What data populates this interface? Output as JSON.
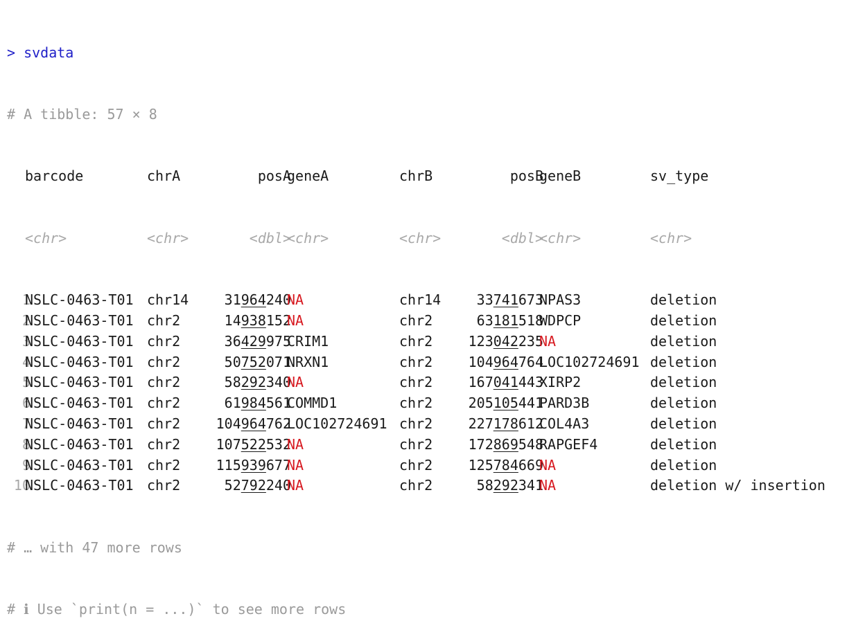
{
  "console": {
    "prompt_symbol": ">",
    "command": "svdata",
    "tibble_header": "# A tibble: 57 × 8",
    "footer_more": "# … with 47 more rows",
    "footer_hint": "# ℹ Use `print(n = ...)` to see more rows"
  },
  "table": {
    "columns": [
      {
        "name": "barcode",
        "type": "<chr>"
      },
      {
        "name": "chrA",
        "type": "<chr>"
      },
      {
        "name": "posA",
        "type": "<dbl>"
      },
      {
        "name": "geneA",
        "type": "<chr>"
      },
      {
        "name": "chrB",
        "type": "<chr>"
      },
      {
        "name": "posB",
        "type": "<dbl>"
      },
      {
        "name": "geneB",
        "type": "<chr>"
      },
      {
        "name": "sv_type",
        "type": "<chr>"
      }
    ],
    "rows": [
      {
        "n": "1",
        "barcode": "NSLC-0463-T01",
        "chrA": "chr14",
        "posA": "31964240",
        "geneA": "NA",
        "chrB": "chr14",
        "posB": "33741673",
        "geneB": "NPAS3",
        "sv_type": "deletion"
      },
      {
        "n": "2",
        "barcode": "NSLC-0463-T01",
        "chrA": "chr2",
        "posA": "14938152",
        "geneA": "NA",
        "chrB": "chr2",
        "posB": "63181518",
        "geneB": "WDPCP",
        "sv_type": "deletion"
      },
      {
        "n": "3",
        "barcode": "NSLC-0463-T01",
        "chrA": "chr2",
        "posA": "36429975",
        "geneA": "CRIM1",
        "chrB": "chr2",
        "posB": "123042235",
        "geneB": "NA",
        "sv_type": "deletion"
      },
      {
        "n": "4",
        "barcode": "NSLC-0463-T01",
        "chrA": "chr2",
        "posA": "50752071",
        "geneA": "NRXN1",
        "chrB": "chr2",
        "posB": "104964764",
        "geneB": "LOC102724691",
        "sv_type": "deletion"
      },
      {
        "n": "5",
        "barcode": "NSLC-0463-T01",
        "chrA": "chr2",
        "posA": "58292340",
        "geneA": "NA",
        "chrB": "chr2",
        "posB": "167041443",
        "geneB": "XIRP2",
        "sv_type": "deletion"
      },
      {
        "n": "6",
        "barcode": "NSLC-0463-T01",
        "chrA": "chr2",
        "posA": "61984561",
        "geneA": "COMMD1",
        "chrB": "chr2",
        "posB": "205105441",
        "geneB": "PARD3B",
        "sv_type": "deletion"
      },
      {
        "n": "7",
        "barcode": "NSLC-0463-T01",
        "chrA": "chr2",
        "posA": "104964762",
        "geneA": "LOC102724691",
        "chrB": "chr2",
        "posB": "227178612",
        "geneB": "COL4A3",
        "sv_type": "deletion"
      },
      {
        "n": "8",
        "barcode": "NSLC-0463-T01",
        "chrA": "chr2",
        "posA": "107522532",
        "geneA": "NA",
        "chrB": "chr2",
        "posB": "172869548",
        "geneB": "RAPGEF4",
        "sv_type": "deletion"
      },
      {
        "n": "9",
        "barcode": "NSLC-0463-T01",
        "chrA": "chr2",
        "posA": "115939677",
        "geneA": "NA",
        "chrB": "chr2",
        "posB": "125784669",
        "geneB": "NA",
        "sv_type": "deletion"
      },
      {
        "n": "10",
        "barcode": "NSLC-0463-T01",
        "chrA": "chr2",
        "posA": "52792240",
        "geneA": "NA",
        "chrB": "chr2",
        "posB": "58292341",
        "geneB": "NA",
        "sv_type": "deletion w/ insertion"
      }
    ]
  },
  "colors": {
    "prompt": "#1f1fc8",
    "na": "#d71920",
    "muted": "#9a9a9a"
  }
}
